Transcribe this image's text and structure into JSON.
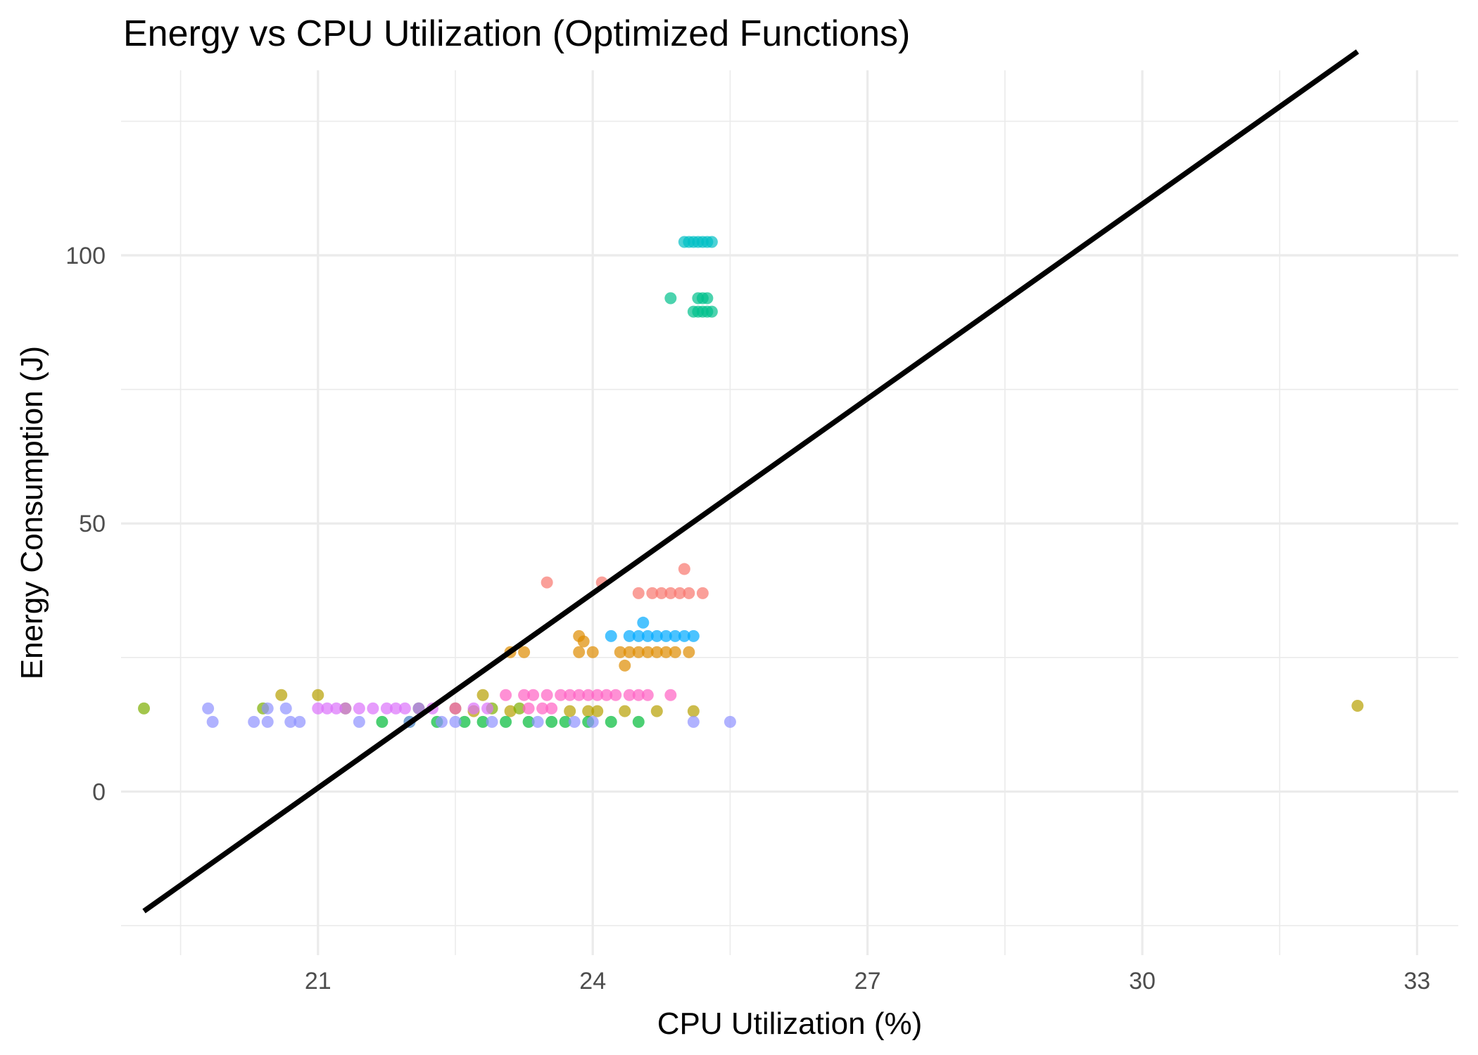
{
  "chart_data": {
    "type": "scatter",
    "title": "Energy vs CPU Utilization (Optimized Functions)",
    "xlabel": "CPU Utilization (%)",
    "ylabel": "Energy Consumption (J)",
    "xlim": [
      18.85,
      33.45
    ],
    "ylim": [
      -30.5,
      134.5
    ],
    "x_ticks": [
      21,
      24,
      27,
      30,
      33
    ],
    "x_tick_labels": [
      "21",
      "24",
      "27",
      "30",
      "33"
    ],
    "x_minor_ticks": [
      19.5,
      22.5,
      25.5,
      28.5,
      31.5
    ],
    "y_ticks": [
      0,
      50,
      100
    ],
    "y_tick_labels": [
      "0",
      "50",
      "100"
    ],
    "y_minor_ticks": [
      -25,
      25,
      75,
      125
    ],
    "grid": true,
    "legend": "none",
    "point_opacity": 0.7,
    "trend_line": {
      "x": [
        19.1,
        32.35
      ],
      "y": [
        -22.3,
        138.0
      ],
      "color": "#000000"
    },
    "series": [
      {
        "color": "#F8766D",
        "points": [
          [
            23.5,
            39
          ],
          [
            24.1,
            39
          ],
          [
            24.5,
            37
          ],
          [
            24.65,
            37
          ],
          [
            24.75,
            37
          ],
          [
            24.85,
            37
          ],
          [
            24.95,
            37
          ],
          [
            25.05,
            37
          ],
          [
            25.2,
            37
          ],
          [
            25.0,
            41.5
          ]
        ]
      },
      {
        "color": "#DE8C00",
        "points": [
          [
            23.1,
            26
          ],
          [
            23.25,
            26
          ],
          [
            23.85,
            29
          ],
          [
            23.85,
            26
          ],
          [
            24.0,
            26
          ],
          [
            24.3,
            26
          ],
          [
            24.4,
            26
          ],
          [
            24.5,
            26
          ],
          [
            24.6,
            26
          ],
          [
            24.7,
            26
          ],
          [
            24.8,
            26
          ],
          [
            24.9,
            26
          ],
          [
            25.05,
            26
          ],
          [
            24.35,
            23.5
          ],
          [
            23.9,
            28
          ]
        ]
      },
      {
        "color": "#B79F00",
        "points": [
          [
            20.6,
            18
          ],
          [
            21.0,
            18
          ],
          [
            22.8,
            18
          ],
          [
            23.1,
            15
          ],
          [
            23.75,
            15
          ],
          [
            24.05,
            15
          ],
          [
            24.35,
            15
          ],
          [
            24.7,
            15
          ],
          [
            25.1,
            15
          ],
          [
            32.35,
            16
          ],
          [
            23.95,
            15
          ],
          [
            22.7,
            15
          ]
        ]
      },
      {
        "color": "#7CAE00",
        "points": [
          [
            19.1,
            15.5
          ],
          [
            20.4,
            15.5
          ],
          [
            21.3,
            15.5
          ],
          [
            22.5,
            15.5
          ],
          [
            22.9,
            15.5
          ],
          [
            23.2,
            15.5
          ]
        ]
      },
      {
        "color": "#00BA38",
        "points": [
          [
            21.7,
            13
          ],
          [
            22.0,
            13
          ],
          [
            22.3,
            13
          ],
          [
            22.6,
            13
          ],
          [
            22.8,
            13
          ],
          [
            23.05,
            13
          ],
          [
            23.3,
            13
          ],
          [
            23.55,
            13
          ],
          [
            23.7,
            13
          ],
          [
            23.95,
            13
          ],
          [
            24.2,
            13
          ],
          [
            24.5,
            13
          ],
          [
            22.1,
            15.5
          ]
        ]
      },
      {
        "color": "#00C08B",
        "points": [
          [
            24.85,
            92
          ],
          [
            25.15,
            92
          ],
          [
            25.2,
            92
          ],
          [
            25.25,
            92
          ],
          [
            25.1,
            89.5
          ],
          [
            25.15,
            89.5
          ],
          [
            25.2,
            89.5
          ],
          [
            25.25,
            89.5
          ],
          [
            25.3,
            89.5
          ]
        ]
      },
      {
        "color": "#00BFC4",
        "points": [
          [
            25.0,
            102.5
          ],
          [
            25.05,
            102.5
          ],
          [
            25.1,
            102.5
          ],
          [
            25.15,
            102.5
          ],
          [
            25.2,
            102.5
          ],
          [
            25.25,
            102.5
          ],
          [
            25.3,
            102.5
          ]
        ]
      },
      {
        "color": "#00A9FF",
        "points": [
          [
            24.2,
            29
          ],
          [
            24.4,
            29
          ],
          [
            24.5,
            29
          ],
          [
            24.6,
            29
          ],
          [
            24.7,
            29
          ],
          [
            24.8,
            29
          ],
          [
            24.9,
            29
          ],
          [
            25.0,
            29
          ],
          [
            25.1,
            29
          ],
          [
            24.55,
            31.5
          ]
        ]
      },
      {
        "color": "#8F91FF",
        "points": [
          [
            19.8,
            15.5
          ],
          [
            19.85,
            13
          ],
          [
            20.3,
            13
          ],
          [
            20.45,
            15.5
          ],
          [
            20.45,
            13
          ],
          [
            20.65,
            15.5
          ],
          [
            20.7,
            13
          ],
          [
            20.8,
            13
          ],
          [
            21.45,
            13
          ],
          [
            22.0,
            13
          ],
          [
            22.35,
            13
          ],
          [
            22.5,
            13
          ],
          [
            22.9,
            13
          ],
          [
            23.4,
            13
          ],
          [
            23.8,
            13
          ],
          [
            24.0,
            13
          ],
          [
            25.1,
            13
          ],
          [
            25.5,
            13
          ]
        ]
      },
      {
        "color": "#DB72FB",
        "points": [
          [
            21.0,
            15.5
          ],
          [
            21.1,
            15.5
          ],
          [
            21.2,
            15.5
          ],
          [
            21.3,
            15.5
          ],
          [
            21.45,
            15.5
          ],
          [
            21.6,
            15.5
          ],
          [
            21.75,
            15.5
          ],
          [
            21.85,
            15.5
          ],
          [
            21.95,
            15.5
          ],
          [
            22.1,
            15.5
          ],
          [
            22.25,
            15.5
          ],
          [
            22.7,
            15.5
          ],
          [
            22.85,
            15.5
          ]
        ]
      },
      {
        "color": "#FF61C3",
        "points": [
          [
            23.05,
            18
          ],
          [
            23.25,
            18
          ],
          [
            23.35,
            18
          ],
          [
            23.5,
            18
          ],
          [
            23.65,
            18
          ],
          [
            23.75,
            18
          ],
          [
            23.85,
            18
          ],
          [
            23.95,
            18
          ],
          [
            24.05,
            18
          ],
          [
            24.15,
            18
          ],
          [
            24.25,
            18
          ],
          [
            24.4,
            18
          ],
          [
            24.5,
            18
          ],
          [
            24.6,
            18
          ],
          [
            24.85,
            18
          ],
          [
            23.3,
            15.5
          ],
          [
            23.45,
            15.5
          ],
          [
            23.55,
            15.5
          ],
          [
            22.5,
            15.5
          ]
        ]
      }
    ]
  }
}
